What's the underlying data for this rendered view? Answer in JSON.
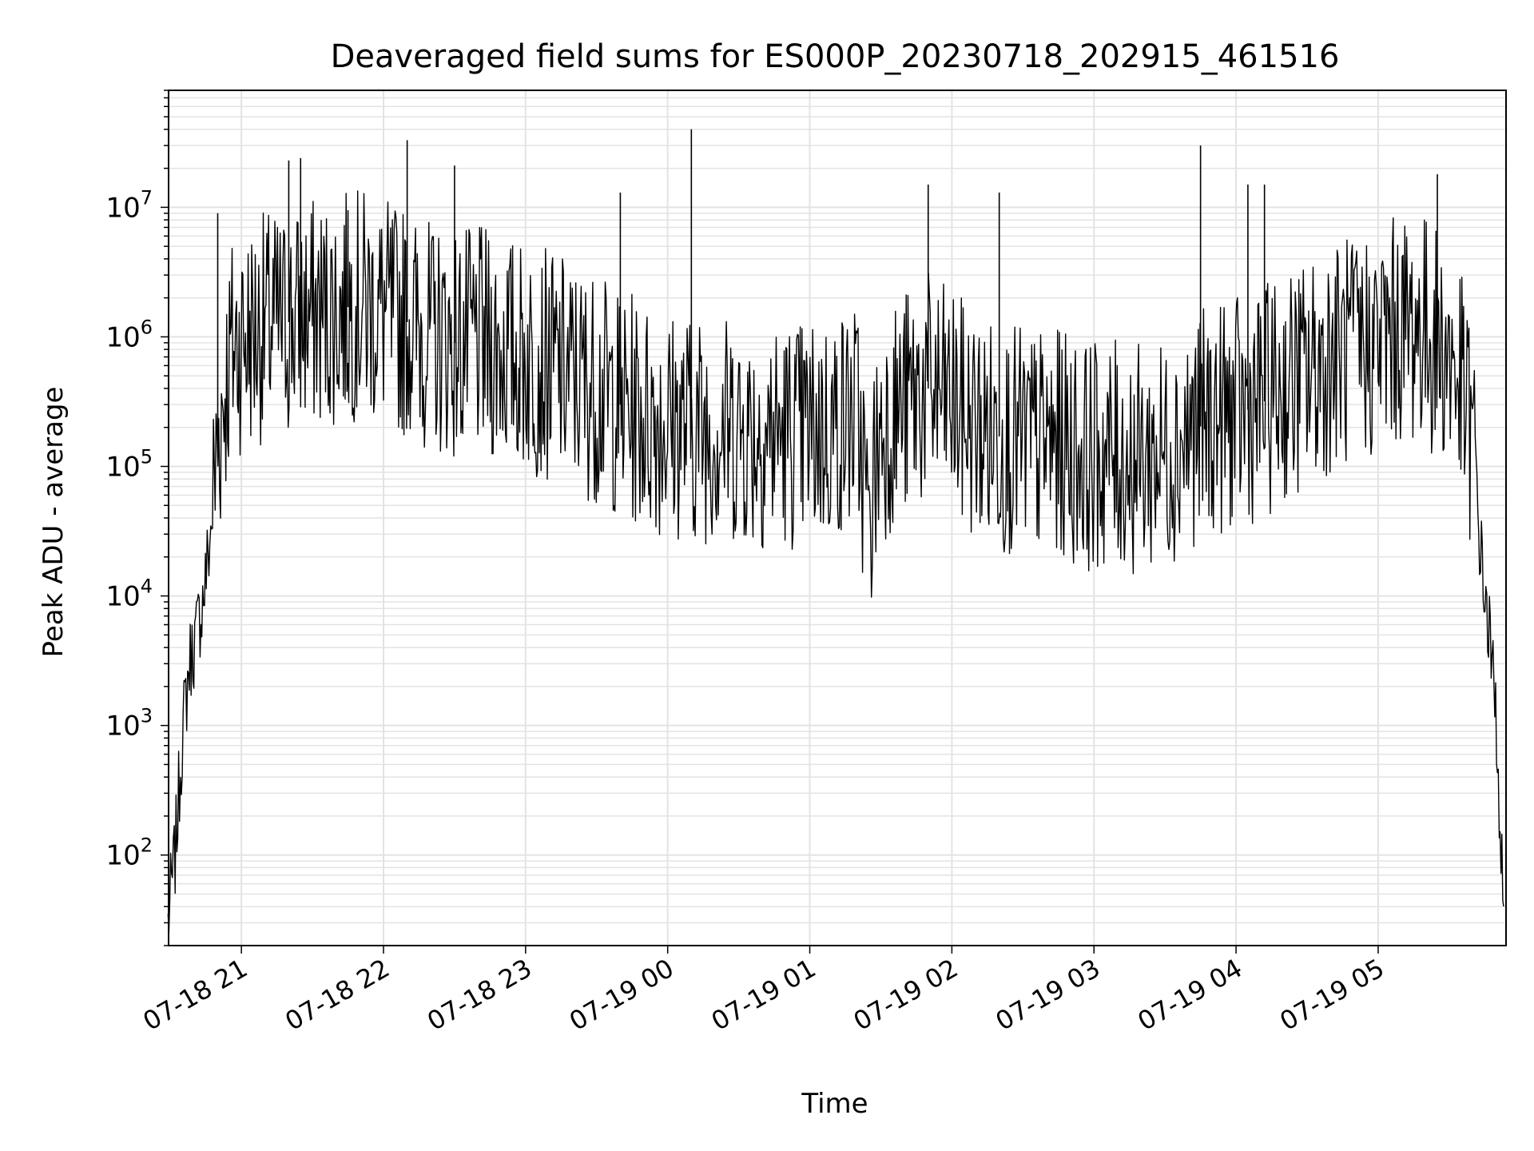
{
  "chart_data": {
    "type": "line",
    "title": "Deaveraged field sums for ES000P_20230718_202915_461516",
    "xlabel": "Time",
    "ylabel": "Peak ADU - average",
    "yscale": "log",
    "ylim": [
      20,
      80000000
    ],
    "xlim": [
      "2023-07-18 20:29:15",
      "2023-07-19 05:54:00"
    ],
    "grid": true,
    "x_ticks": [
      {
        "value": "2023-07-18 21:00",
        "label": "07-18 21"
      },
      {
        "value": "2023-07-18 22:00",
        "label": "07-18 22"
      },
      {
        "value": "2023-07-18 23:00",
        "label": "07-18 23"
      },
      {
        "value": "2023-07-19 00:00",
        "label": "07-19 00"
      },
      {
        "value": "2023-07-19 01:00",
        "label": "07-19 01"
      },
      {
        "value": "2023-07-19 02:00",
        "label": "07-19 02"
      },
      {
        "value": "2023-07-19 03:00",
        "label": "07-19 03"
      },
      {
        "value": "2023-07-19 04:00",
        "label": "07-19 04"
      },
      {
        "value": "2023-07-19 05:00",
        "label": "07-19 05"
      }
    ],
    "y_ticks": [
      {
        "value": 100,
        "base": "10",
        "exp": "2"
      },
      {
        "value": 1000,
        "base": "10",
        "exp": "3"
      },
      {
        "value": 10000,
        "base": "10",
        "exp": "4"
      },
      {
        "value": 100000,
        "base": "10",
        "exp": "5"
      },
      {
        "value": 1000000,
        "base": "10",
        "exp": "6"
      },
      {
        "value": 10000000,
        "base": "10",
        "exp": "7"
      }
    ],
    "series": [
      {
        "color": "#000000",
        "x": [
          "2023-07-18 20:29",
          "2023-07-18 20:32",
          "2023-07-18 20:35",
          "2023-07-18 20:38",
          "2023-07-18 20:41",
          "2023-07-18 20:44",
          "2023-07-18 20:47",
          "2023-07-18 20:50",
          "2023-07-18 20:53",
          "2023-07-18 20:56",
          "2023-07-18 21:00",
          "2023-07-18 21:10",
          "2023-07-18 21:20",
          "2023-07-18 21:30",
          "2023-07-18 21:40",
          "2023-07-18 21:50",
          "2023-07-18 22:00",
          "2023-07-18 22:10",
          "2023-07-18 22:20",
          "2023-07-18 22:30",
          "2023-07-18 22:40",
          "2023-07-18 22:50",
          "2023-07-18 23:00",
          "2023-07-18 23:10",
          "2023-07-18 23:20",
          "2023-07-18 23:30",
          "2023-07-18 23:40",
          "2023-07-18 23:50",
          "2023-07-19 00:00",
          "2023-07-19 00:10",
          "2023-07-19 00:20",
          "2023-07-19 00:30",
          "2023-07-19 00:40",
          "2023-07-19 00:50",
          "2023-07-19 01:00",
          "2023-07-19 01:10",
          "2023-07-19 01:20",
          "2023-07-19 01:25",
          "2023-07-19 01:30",
          "2023-07-19 01:40",
          "2023-07-19 01:50",
          "2023-07-19 02:00",
          "2023-07-19 02:10",
          "2023-07-19 02:20",
          "2023-07-19 02:30",
          "2023-07-19 02:40",
          "2023-07-19 02:50",
          "2023-07-19 03:00",
          "2023-07-19 03:10",
          "2023-07-19 03:20",
          "2023-07-19 03:30",
          "2023-07-19 03:40",
          "2023-07-19 03:50",
          "2023-07-19 04:00",
          "2023-07-19 04:10",
          "2023-07-19 04:20",
          "2023-07-19 04:30",
          "2023-07-19 04:40",
          "2023-07-19 04:50",
          "2023-07-19 05:00",
          "2023-07-19 05:10",
          "2023-07-19 05:20",
          "2023-07-19 05:30",
          "2023-07-19 05:35",
          "2023-07-19 05:40",
          "2023-07-19 05:44",
          "2023-07-19 05:47",
          "2023-07-19 05:50",
          "2023-07-19 05:52",
          "2023-07-19 05:53"
        ],
        "y": [
          30,
          100,
          800,
          3000,
          5000,
          10000,
          30000,
          150000,
          400000,
          800000,
          1000000,
          1200000,
          1300000,
          1500000,
          1600000,
          1800000,
          1500000,
          1300000,
          1000000,
          900000,
          900000,
          800000,
          700000,
          600000,
          500000,
          400000,
          300000,
          250000,
          220000,
          200000,
          200000,
          190000,
          180000,
          180000,
          180000,
          200000,
          250000,
          40000,
          200000,
          300000,
          400000,
          300000,
          200000,
          170000,
          150000,
          150000,
          140000,
          120000,
          120000,
          110000,
          130000,
          180000,
          230000,
          250000,
          300000,
          400000,
          500000,
          700000,
          800000,
          900000,
          1200000,
          1100000,
          700000,
          400000,
          150000,
          15000,
          5000,
          1000,
          100,
          30
        ],
        "spikes": [
          {
            "x": "2023-07-18 20:50",
            "y": 9000000
          },
          {
            "x": "2023-07-18 21:20",
            "y": 23000000
          },
          {
            "x": "2023-07-18 21:25",
            "y": 24000000
          },
          {
            "x": "2023-07-18 21:45",
            "y": 9500000
          },
          {
            "x": "2023-07-18 22:10",
            "y": 33000000
          },
          {
            "x": "2023-07-18 22:30",
            "y": 21000000
          },
          {
            "x": "2023-07-18 23:40",
            "y": 13000000
          },
          {
            "x": "2023-07-19 00:10",
            "y": 40000000
          },
          {
            "x": "2023-07-19 01:50",
            "y": 15000000
          },
          {
            "x": "2023-07-19 02:20",
            "y": 13000000
          },
          {
            "x": "2023-07-19 03:45",
            "y": 30000000
          },
          {
            "x": "2023-07-19 04:05",
            "y": 15000000
          },
          {
            "x": "2023-07-19 04:12",
            "y": 15000000
          },
          {
            "x": "2023-07-19 05:25",
            "y": 18000000
          }
        ]
      }
    ]
  }
}
